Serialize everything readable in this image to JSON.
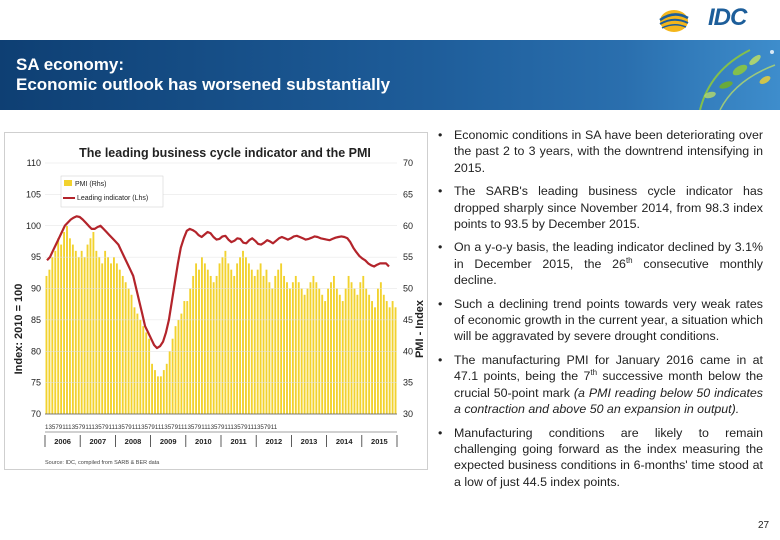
{
  "logo": {
    "text": "IDC"
  },
  "banner": {
    "title": "SA economy:\nEconomic outlook has worsened substantially"
  },
  "colors": {
    "banner": "#1e5d9a",
    "pmi_bar": "#f2d22e",
    "leading_line": "#b3242b"
  },
  "chart_data": {
    "type": "bar",
    "title": "The leading business cycle indicator and the PMI",
    "ylabel_left": "Index: 2010 = 100",
    "ylabel_right": "PMI - Index",
    "ylim_left": [
      70,
      110
    ],
    "ylim_right": [
      30,
      70
    ],
    "yticks_left": [
      "110",
      "105",
      "100",
      "95",
      "90",
      "85",
      "80",
      "75",
      "70"
    ],
    "yticks_right": [
      "70",
      "65",
      "60",
      "55",
      "50",
      "45",
      "40",
      "35",
      "30"
    ],
    "legend": [
      "PMI (Rhs)",
      "Leading indicator (Lhs)"
    ],
    "years": [
      "2006",
      "2007",
      "2008",
      "2009",
      "2010",
      "2011",
      "2012",
      "2013",
      "2014",
      "2015"
    ],
    "month_ticks": "1357911135791113579111357911135791113579111357911135791113579111357911",
    "source": "Source: IDC, compiled from SARB & BER data",
    "series": [
      {
        "name": "PMI (Rhs)",
        "type": "bar",
        "values": [
          52,
          53,
          55,
          56,
          58,
          57,
          59,
          60,
          58,
          57,
          56,
          55,
          56,
          55,
          57,
          58,
          59,
          56,
          55,
          54,
          56,
          55,
          54,
          55,
          54,
          53,
          52,
          51,
          50,
          49,
          47,
          46,
          45,
          44,
          43,
          42,
          38,
          37,
          36,
          36,
          37,
          38,
          40,
          42,
          44,
          45,
          46,
          48,
          48,
          50,
          52,
          54,
          53,
          55,
          54,
          53,
          52,
          51,
          52,
          54,
          55,
          56,
          54,
          53,
          52,
          54,
          55,
          56,
          55,
          54,
          53,
          52,
          53,
          54,
          52,
          53,
          51,
          50,
          52,
          53,
          54,
          52,
          51,
          50,
          51,
          52,
          51,
          50,
          49,
          50,
          51,
          52,
          51,
          50,
          49,
          48,
          50,
          51,
          52,
          50,
          49,
          48,
          50,
          52,
          51,
          50,
          49,
          51,
          52,
          50,
          49,
          48,
          47,
          50,
          51,
          49,
          48,
          47,
          48,
          47
        ]
      },
      {
        "name": "Leading indicator (Lhs)",
        "type": "line",
        "values": [
          94.5,
          95,
          96,
          97,
          98,
          99,
          100,
          100.5,
          101,
          101.3,
          101.5,
          101.4,
          101,
          100.5,
          100,
          99.5,
          99.5,
          99.8,
          100,
          99.5,
          99,
          98.5,
          98,
          97.5,
          97,
          96,
          95,
          94,
          93,
          92,
          90,
          88,
          86,
          84,
          83,
          82,
          81,
          80.5,
          80.8,
          81.5,
          83,
          85,
          88,
          91,
          94,
          96.5,
          98,
          99.2,
          99.5,
          99.3,
          99,
          98.5,
          98.2,
          98.6,
          99,
          98.8,
          98.2,
          97.8,
          97.9,
          98.3,
          98.4,
          97.8,
          97.4,
          97.6,
          98,
          97.9,
          97.3,
          97.2,
          97.7,
          98,
          97.6,
          97.1,
          97,
          97.3,
          97.7,
          97.5,
          97.2,
          97.6,
          98,
          98.2,
          98,
          97.8,
          98,
          98.3,
          98.4,
          98.2,
          98,
          97.8,
          97.9,
          98.1,
          98.3,
          98.2,
          98,
          97.9,
          97.8,
          97.7,
          97.9,
          98.1,
          98.2,
          98.3,
          98.2,
          98,
          97.4,
          96.5,
          95.8,
          95.2,
          94.8,
          94.5,
          94,
          93.7,
          93.5,
          93.8,
          94,
          94,
          94,
          93.5
        ]
      }
    ]
  },
  "bullets": [
    {
      "text": "Economic conditions in SA have been deteriorating over the past 2 to 3 years, with the downtrend intensifying in 2015."
    },
    {
      "text": "The SARB's leading business cycle indicator has dropped sharply since November 2014, from 98.3 index points to 93.5 by December 2015."
    },
    {
      "pre": "On a y-o-y basis, the leading indicator declined by 3.1% in December 2015, the 26",
      "sup": "th",
      "post": " consecutive monthly decline."
    },
    {
      "text": "Such a declining trend points towards very weak rates of economic growth in the current year, a situation which will be aggravated by severe drought conditions."
    },
    {
      "pre": "The manufacturing PMI for January 2016 came in at 47.1 points, being the 7",
      "sup": "th",
      "post": " successive month below the crucial 50-point mark ",
      "italic": "(a PMI reading below 50 indicates a contraction and above 50 an expansion in output)."
    },
    {
      "text": "Manufacturing conditions are likely to remain challenging going forward as the index measuring the expected business conditions in 6-months' time stood at a low of just 44.5 index points."
    }
  ],
  "bullet_glyph": "•",
  "page_number": "27"
}
